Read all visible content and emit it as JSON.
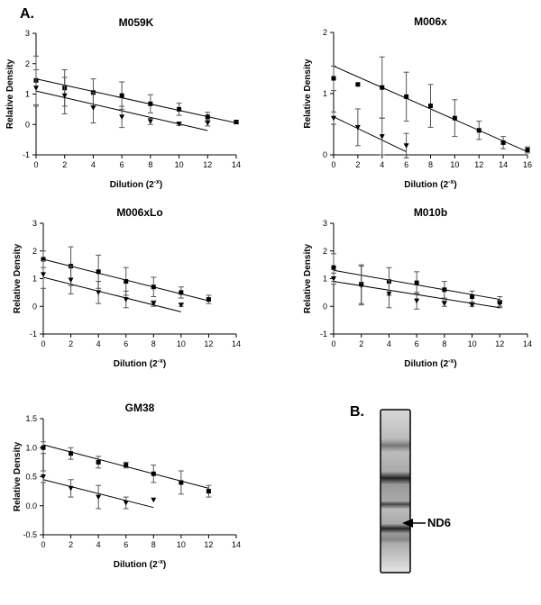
{
  "panel_a_label": "A.",
  "chart_data": [
    {
      "type": "scatter",
      "title": "M059K",
      "xlabel": [
        "Dilution (2",
        "-x",
        ")"
      ],
      "ylabel": "Relative Density",
      "xlim": [
        0,
        14
      ],
      "xticks": [
        0,
        2,
        4,
        6,
        8,
        10,
        12,
        14
      ],
      "ylim": [
        -1,
        3
      ],
      "yticks": [
        -1,
        0,
        1,
        2,
        3
      ],
      "series": [
        {
          "marker": "square",
          "color": "#000000",
          "x": [
            0,
            2,
            4,
            6,
            8,
            10,
            12,
            14
          ],
          "values": [
            1.45,
            1.2,
            1.05,
            0.95,
            0.68,
            0.5,
            0.25,
            0.08
          ],
          "errors": [
            0.8,
            0.6,
            0.45,
            0.45,
            0.3,
            0.2,
            0.15,
            0.05
          ],
          "fit": {
            "x": [
              0,
              14
            ],
            "values": [
              1.5,
              0.05
            ]
          }
        },
        {
          "marker": "triangle",
          "color": "#000000",
          "x": [
            0,
            2,
            4,
            6,
            8,
            10,
            12
          ],
          "values": [
            1.2,
            0.95,
            0.55,
            0.25,
            0.1,
            0.02,
            0.05
          ],
          "errors": [
            0.6,
            0.6,
            0.5,
            0.35,
            0.1,
            0.05,
            0.1
          ],
          "fit": {
            "x": [
              0,
              12
            ],
            "values": [
              1.1,
              -0.2
            ]
          }
        }
      ]
    },
    {
      "type": "scatter",
      "title": "M006x",
      "xlabel": [
        "Dilution (2",
        "-x",
        ")"
      ],
      "ylabel": "Relative Density",
      "xlim": [
        0,
        16
      ],
      "xticks": [
        0,
        2,
        4,
        6,
        8,
        10,
        12,
        14,
        16
      ],
      "ylim": [
        0,
        2
      ],
      "yticks": [
        0,
        1,
        2
      ],
      "series": [
        {
          "marker": "square",
          "color": "#000000",
          "x": [
            0,
            2,
            4,
            6,
            8,
            10,
            12,
            14,
            16
          ],
          "values": [
            1.25,
            1.15,
            1.1,
            0.95,
            0.8,
            0.6,
            0.4,
            0.2,
            0.08
          ],
          "errors": [
            0.2,
            0,
            0.5,
            0.4,
            0.35,
            0.3,
            0.15,
            0.1,
            0.05
          ],
          "fit": {
            "x": [
              0,
              16
            ],
            "values": [
              1.45,
              0.05
            ]
          }
        },
        {
          "marker": "triangle",
          "color": "#000000",
          "x": [
            0,
            2,
            4,
            6
          ],
          "values": [
            0.6,
            0.45,
            0.3,
            0.15
          ],
          "errors": [
            0.1,
            0.3,
            0.3,
            0.2
          ],
          "fit": {
            "x": [
              0,
              6
            ],
            "values": [
              0.62,
              0.05
            ]
          }
        }
      ]
    },
    {
      "type": "scatter",
      "title": "M006xLo",
      "xlabel": [
        "Dilution (2",
        "-x",
        ")"
      ],
      "ylabel": "Relative Density",
      "xlim": [
        0,
        14
      ],
      "xticks": [
        0,
        2,
        4,
        6,
        8,
        10,
        12,
        14
      ],
      "ylim": [
        -1,
        3
      ],
      "yticks": [
        -1,
        0,
        1,
        2,
        3
      ],
      "series": [
        {
          "marker": "square",
          "color": "#000000",
          "x": [
            0,
            2,
            4,
            6,
            8,
            10,
            12
          ],
          "values": [
            1.7,
            1.45,
            1.25,
            0.9,
            0.7,
            0.5,
            0.25
          ],
          "errors": [
            0.3,
            0.7,
            0.6,
            0.5,
            0.35,
            0.2,
            0.15
          ],
          "fit": {
            "x": [
              0,
              12
            ],
            "values": [
              1.7,
              0.2
            ]
          }
        },
        {
          "marker": "triangle",
          "color": "#000000",
          "x": [
            0,
            2,
            4,
            6,
            8,
            10
          ],
          "values": [
            1.15,
            0.95,
            0.5,
            0.25,
            0.1,
            0.05
          ],
          "errors": [
            0.5,
            0.5,
            0.4,
            0.3,
            0.1,
            0.05
          ],
          "fit": {
            "x": [
              0,
              10
            ],
            "values": [
              1.05,
              -0.2
            ]
          }
        }
      ]
    },
    {
      "type": "scatter",
      "title": "M010b",
      "xlabel": [
        "Dilution (2",
        "-x",
        ")"
      ],
      "ylabel": "Relative Density",
      "xlim": [
        0,
        14
      ],
      "xticks": [
        0,
        2,
        4,
        6,
        8,
        10,
        12,
        14
      ],
      "ylim": [
        -1,
        3
      ],
      "yticks": [
        -1,
        0,
        1,
        2,
        3
      ],
      "series": [
        {
          "marker": "square",
          "color": "#000000",
          "x": [
            0,
            2,
            4,
            6,
            8,
            10,
            12
          ],
          "values": [
            1.4,
            0.8,
            0.9,
            0.85,
            0.6,
            0.35,
            0.15
          ],
          "errors": [
            0.5,
            0.7,
            0.5,
            0.4,
            0.3,
            0.2,
            0.2
          ],
          "fit": {
            "x": [
              0,
              12
            ],
            "values": [
              1.3,
              0.25
            ]
          }
        },
        {
          "marker": "triangle",
          "color": "#000000",
          "x": [
            0,
            2,
            4,
            6,
            8,
            10,
            12
          ],
          "values": [
            1.0,
            0.75,
            0.45,
            0.2,
            0.1,
            0.05,
            0.1
          ],
          "errors": [
            0.2,
            0.7,
            0.5,
            0.3,
            0.1,
            0.05,
            0.1
          ],
          "fit": {
            "x": [
              0,
              12
            ],
            "values": [
              0.9,
              -0.05
            ]
          }
        }
      ]
    },
    {
      "type": "scatter",
      "title": "GM38",
      "xlabel": [
        "Dilution (2",
        "-x",
        ")"
      ],
      "ylabel": "Relative Density",
      "xlim": [
        0,
        14
      ],
      "xticks": [
        0,
        2,
        4,
        6,
        8,
        10,
        12,
        14
      ],
      "ylim": [
        -0.5,
        1.5
      ],
      "yticks": [
        -0.5,
        {
          "value": 0,
          "label": "0.0"
        },
        0.5,
        {
          "value": 1,
          "label": "1.0"
        },
        1.5
      ],
      "series": [
        {
          "marker": "square",
          "color": "#000000",
          "x": [
            0,
            2,
            4,
            6,
            8,
            10,
            12
          ],
          "values": [
            1.0,
            0.9,
            0.75,
            0.7,
            0.55,
            0.4,
            0.25
          ],
          "errors": [
            0.1,
            0.1,
            0.1,
            0.05,
            0.15,
            0.2,
            0.1
          ],
          "fit": {
            "x": [
              0,
              12
            ],
            "values": [
              1.05,
              0.3
            ]
          }
        },
        {
          "marker": "triangle",
          "color": "#000000",
          "x": [
            0,
            2,
            4,
            6,
            8
          ],
          "values": [
            0.5,
            0.3,
            0.15,
            0.05,
            0.1
          ],
          "errors": [
            0.1,
            0.15,
            0.2,
            0.1,
            0
          ],
          "fit": {
            "x": [
              0,
              8
            ],
            "values": [
              0.45,
              -0.03
            ]
          }
        }
      ]
    }
  ],
  "panel_b": {
    "label": "B.",
    "band_label": "ND6"
  }
}
